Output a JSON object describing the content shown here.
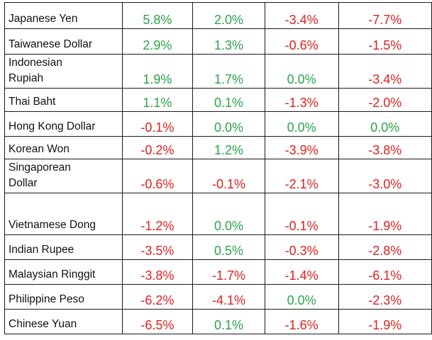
{
  "colors": {
    "positive": "#2aa34a",
    "negative": "#e02020",
    "text": "#111111",
    "border": "#1a1a1a"
  },
  "rows": [
    {
      "name": "Japanese Yen",
      "values": [
        "5.8%",
        "2.0%",
        "-3.4%",
        "-7.7%"
      ]
    },
    {
      "name": "Taiwanese Dollar",
      "values": [
        "2.9%",
        "1.3%",
        "-0.6%",
        "-1.5%"
      ]
    },
    {
      "name": "Indonesian Rupiah",
      "values": [
        "1.9%",
        "1.7%",
        "0.0%",
        "-3.4%"
      ]
    },
    {
      "name": "Thai Baht",
      "values": [
        "1.1%",
        "0.1%",
        "-1.3%",
        "-2.0%"
      ]
    },
    {
      "name": "Hong Kong Dollar",
      "values": [
        "-0.1%",
        "0.0%",
        "0.0%",
        "0.0%"
      ]
    },
    {
      "name": "Korean Won",
      "values": [
        "-0.2%",
        "1.2%",
        "-3.9%",
        "-3.8%"
      ]
    },
    {
      "name": "Singaporean Dollar",
      "values": [
        "-0.6%",
        "-0.1%",
        "-2.1%",
        "-3.0%"
      ]
    },
    {
      "name": "Vietnamese Dong",
      "values": [
        "-1.2%",
        "0.0%",
        "-0.1%",
        "-1.9%"
      ]
    },
    {
      "name": "Indian Rupee",
      "values": [
        "-3.5%",
        "0.5%",
        "-0.3%",
        "-2.8%"
      ]
    },
    {
      "name": "Malaysian Ringgit",
      "values": [
        "-3.8%",
        "-1.7%",
        "-1.4%",
        "-6.1%"
      ]
    },
    {
      "name": "Philippine Peso",
      "values": [
        "-6.2%",
        "-4.1%",
        "0.0%",
        "-2.3%"
      ]
    },
    {
      "name": "Chinese Yuan",
      "values": [
        "-6.5%",
        "0.1%",
        "-1.6%",
        "-1.9%"
      ]
    }
  ]
}
